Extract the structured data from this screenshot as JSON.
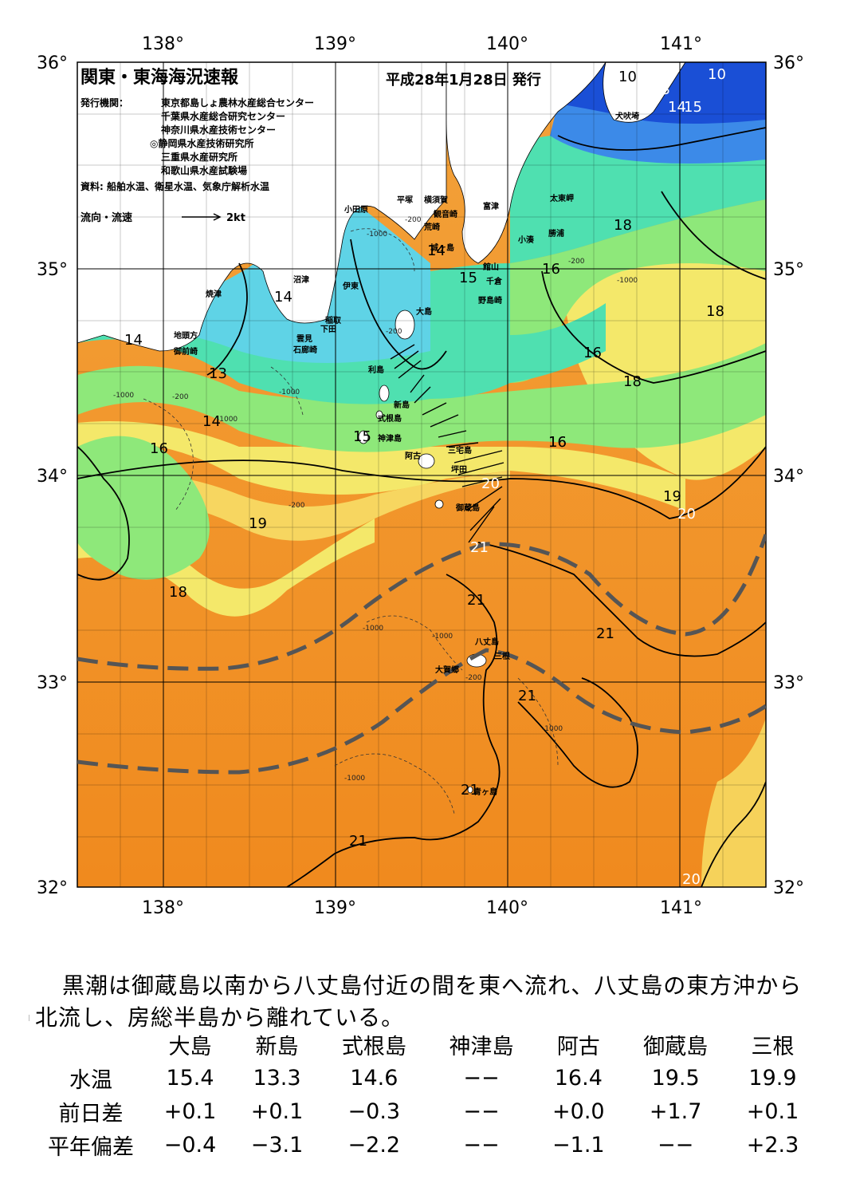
{
  "map": {
    "title": "関東・東海海況速報",
    "issue_date": "平成28年1月28日 発行",
    "publisher_label": "発行機関：",
    "publishers": [
      "東京都島しょ農林水産総合センター",
      "千葉県水産総合研究センター",
      "神奈川県水産技術センター",
      "◎静岡県水産技術研究所",
      "三重県水産研究所",
      "和歌山県水産試験場"
    ],
    "source": "資料: 船舶水温、衛星水温、気象庁解析水温",
    "flow_legend_label": "流向・流速",
    "flow_legend_scale": "2kt",
    "lon_labels": [
      "138°",
      "139°",
      "140°",
      "141°"
    ],
    "lat_labels": [
      "36°",
      "35°",
      "34°",
      "33°",
      "32°"
    ],
    "place_names": [
      "犬吠埼",
      "太東岬",
      "勝浦",
      "小湊",
      "富津",
      "横須賀",
      "観音崎",
      "荒崎",
      "平塚",
      "小田原",
      "城ヶ島",
      "館山",
      "千倉",
      "野島崎",
      "大島",
      "稲取",
      "下田",
      "雲見",
      "石廊崎",
      "伊東",
      "沼津",
      "焼津",
      "地頭方",
      "御前崎",
      "利島",
      "新島",
      "式根島",
      "神津島",
      "三宅島",
      "阿古",
      "坪田",
      "御蔵島",
      "八丈島",
      "三根",
      "大賀郷",
      "青ヶ島"
    ],
    "isotherm_labels": [
      "10",
      "10",
      "13",
      "14",
      "15",
      "18",
      "16",
      "15",
      "14",
      "14",
      "14",
      "13",
      "14",
      "16",
      "16",
      "18",
      "18",
      "16",
      "15",
      "16",
      "20",
      "19",
      "20",
      "19",
      "18",
      "21",
      "21",
      "21",
      "21",
      "21",
      "21",
      "20"
    ],
    "depth_labels": [
      "-200",
      "-1000",
      "-200",
      "-1000",
      "-200",
      "-1000",
      "-1000",
      "-1000",
      "-1000",
      "-200",
      "-1000",
      "-1000",
      "-200",
      "-200",
      "-1000"
    ],
    "colors": {
      "cold_blue": "#1a4fd6",
      "cyan": "#5fd3e6",
      "teal": "#4fe0b0",
      "green": "#8ee87a",
      "yellow": "#f4e86a",
      "orange": "#f3a23a",
      "deep_orange": "#f08a1e",
      "land": "#ffffff",
      "kuroshio_axis": "#555555"
    }
  },
  "summary": "黒潮は御蔵島以南から八丈島付近の間を東へ流れ、八丈島の東方沖から北流し、房総半島から離れている。",
  "table": {
    "columns": [
      "大島",
      "新島",
      "式根島",
      "神津島",
      "阿古",
      "御蔵島",
      "三根"
    ],
    "rows": [
      {
        "label": "水温",
        "values": [
          "15.4",
          "13.3",
          "14.6",
          "−−",
          "16.4",
          "19.5",
          "19.9"
        ]
      },
      {
        "label": "前日差",
        "values": [
          "+0.1",
          "+0.1",
          "−0.3",
          "−−",
          "+0.0",
          "+1.7",
          "+0.1"
        ]
      },
      {
        "label": "平年偏差",
        "values": [
          "−0.4",
          "−3.1",
          "−2.2",
          "−−",
          "−1.1",
          "−−",
          "+2.3"
        ]
      }
    ]
  }
}
